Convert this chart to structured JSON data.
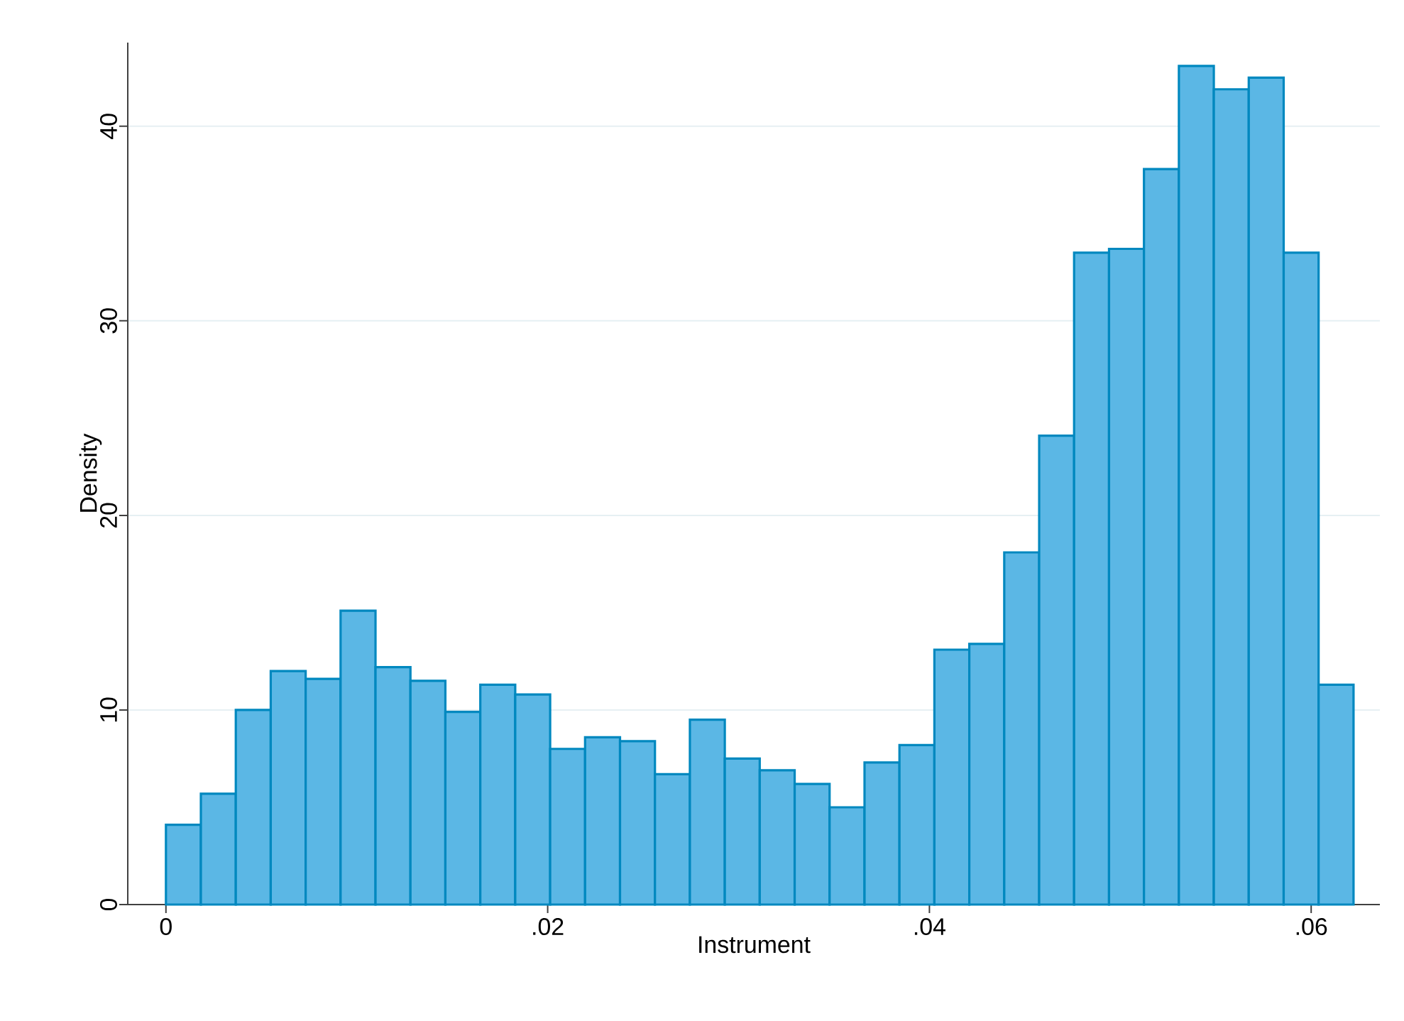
{
  "chart_data": {
    "type": "histogram",
    "xlabel": "Instrument",
    "ylabel": "Density",
    "color": "#5bb7e5",
    "bins": [
      0,
      0.00183,
      0.00366,
      0.00549,
      0.00732,
      0.00915,
      0.01098,
      0.01281,
      0.01464,
      0.01647,
      0.0183,
      0.02013,
      0.02196,
      0.02379,
      0.02562,
      0.02745,
      0.02928,
      0.03111,
      0.03294,
      0.03477,
      0.0366,
      0.03843,
      0.04026,
      0.04209,
      0.04392,
      0.04575,
      0.04758,
      0.04941,
      0.05124,
      0.05307,
      0.0549,
      0.05673,
      0.05856,
      0.06039,
      0.06222
    ],
    "values": [
      4.1,
      5.7,
      10.0,
      12.0,
      11.6,
      15.1,
      12.2,
      11.5,
      9.9,
      11.3,
      10.8,
      8.0,
      8.6,
      8.4,
      6.7,
      9.5,
      7.5,
      6.9,
      6.2,
      5.0,
      7.3,
      8.2,
      13.1,
      13.4,
      18.1,
      24.1,
      33.5,
      33.7,
      37.8,
      43.1,
      41.9,
      42.5,
      33.5,
      11.3
    ],
    "xlim": [
      -0.002,
      0.0636
    ],
    "ylim": [
      0,
      44.3
    ],
    "xticks": [
      0,
      {
        "value": 0.02,
        "label": ".02"
      },
      {
        "value": 0.04,
        "label": ".04"
      },
      {
        "value": 0.06,
        "label": ".06"
      }
    ],
    "yticks": [
      0,
      10,
      20,
      30,
      40
    ],
    "grid": "y"
  }
}
